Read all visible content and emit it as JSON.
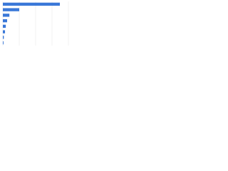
{
  "chart_data": {
    "type": "barh",
    "categories": [
      null,
      null,
      null,
      null,
      null,
      null,
      null,
      null
    ],
    "values": [
      87,
      25,
      10,
      6.5,
      4.5,
      3.3,
      1.5,
      1
    ],
    "color": "#3a78d8",
    "xlim": [
      0,
      100
    ],
    "xticks": [
      0,
      25,
      50,
      75,
      100
    ],
    "grid": true
  }
}
